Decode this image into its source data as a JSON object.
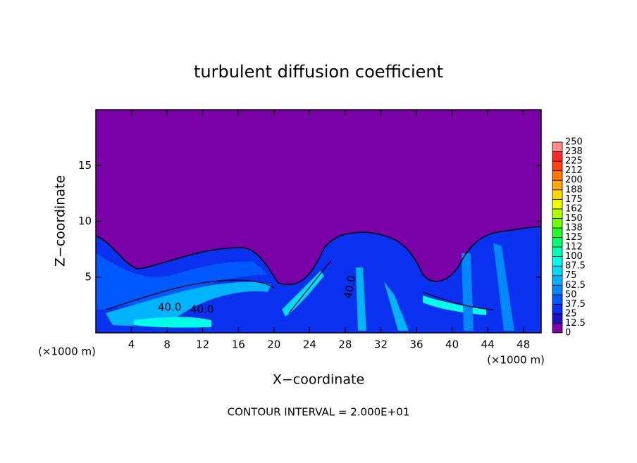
{
  "chart_data": {
    "type": "contour",
    "title": "turbulent diffusion coefficient",
    "x_label": "X−coordinate",
    "y_label": "Z−coordinate",
    "x_unit": "(×1000 m)",
    "y_unit": "(×1000 m)",
    "footer": "CONTOUR INTERVAL = 2.000E+01",
    "contour_labels": [
      "40.0",
      "40.0",
      "40.0"
    ],
    "xlim": [
      0,
      50
    ],
    "xticks": [
      4,
      8,
      12,
      16,
      20,
      24,
      28,
      32,
      36,
      40,
      44,
      48
    ],
    "ylim": [
      0,
      20
    ],
    "yticks": [
      5,
      10,
      15
    ],
    "colorbar_levels": [
      0,
      12.5,
      25,
      37.5,
      50,
      62.5,
      75,
      87.5,
      100,
      112,
      125,
      138,
      150,
      162,
      175,
      188,
      200,
      212,
      225,
      238,
      250
    ],
    "colors": [
      "#7a00a8",
      "#1c10c8",
      "#0a30f0",
      "#0058ff",
      "#0088ff",
      "#00b4ff",
      "#00dcff",
      "#00ffe6",
      "#00ffb0",
      "#00ff70",
      "#20ff20",
      "#70ff00",
      "#b0ff00",
      "#f0ff00",
      "#ffd800",
      "#ffa800",
      "#ff7800",
      "#ff4010",
      "#ff2828",
      "#ff8888"
    ]
  }
}
